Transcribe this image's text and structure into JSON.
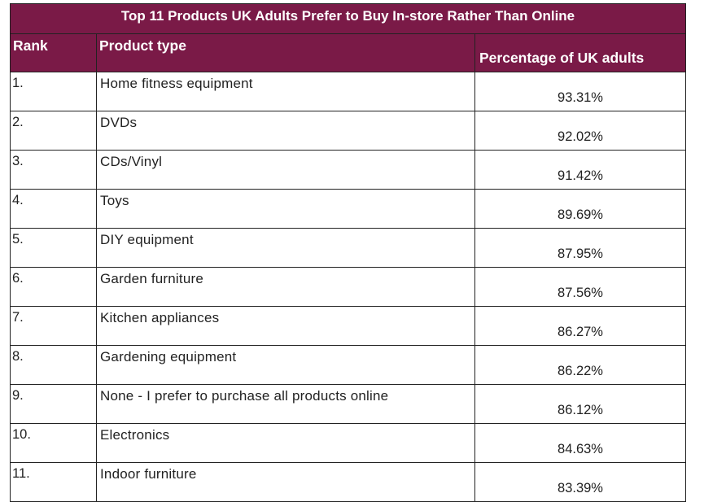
{
  "chart_data": {
    "type": "table",
    "title": "Top 11 Products UK Adults Prefer to Buy In-store Rather Than Online",
    "columns": [
      "Rank",
      "Product type",
      "Percentage of UK adults"
    ],
    "rows": [
      {
        "rank": "1.",
        "product": "Home fitness equipment",
        "percentage": "93.31%"
      },
      {
        "rank": "2.",
        "product": "DVDs",
        "percentage": "92.02%"
      },
      {
        "rank": "3.",
        "product": "CDs/Vinyl",
        "percentage": "91.42%"
      },
      {
        "rank": "4.",
        "product": "Toys",
        "percentage": "89.69%"
      },
      {
        "rank": "5.",
        "product": "DIY equipment",
        "percentage": "87.95%"
      },
      {
        "rank": "6.",
        "product": "Garden furniture",
        "percentage": "87.56%"
      },
      {
        "rank": "7.",
        "product": "Kitchen appliances",
        "percentage": "86.27%"
      },
      {
        "rank": "8.",
        "product": "Gardening equipment",
        "percentage": "86.22%"
      },
      {
        "rank": "9.",
        "product": "None - I prefer to purchase all products online",
        "percentage": "86.12%"
      },
      {
        "rank": "10.",
        "product": "Electronics",
        "percentage": "84.63%"
      },
      {
        "rank": "11.",
        "product": "Indoor furniture",
        "percentage": "83.39%"
      }
    ]
  },
  "colors": {
    "header_background": "#7a1a47",
    "header_text": "#ffffff",
    "border": "#222222",
    "body_text": "#222222"
  }
}
